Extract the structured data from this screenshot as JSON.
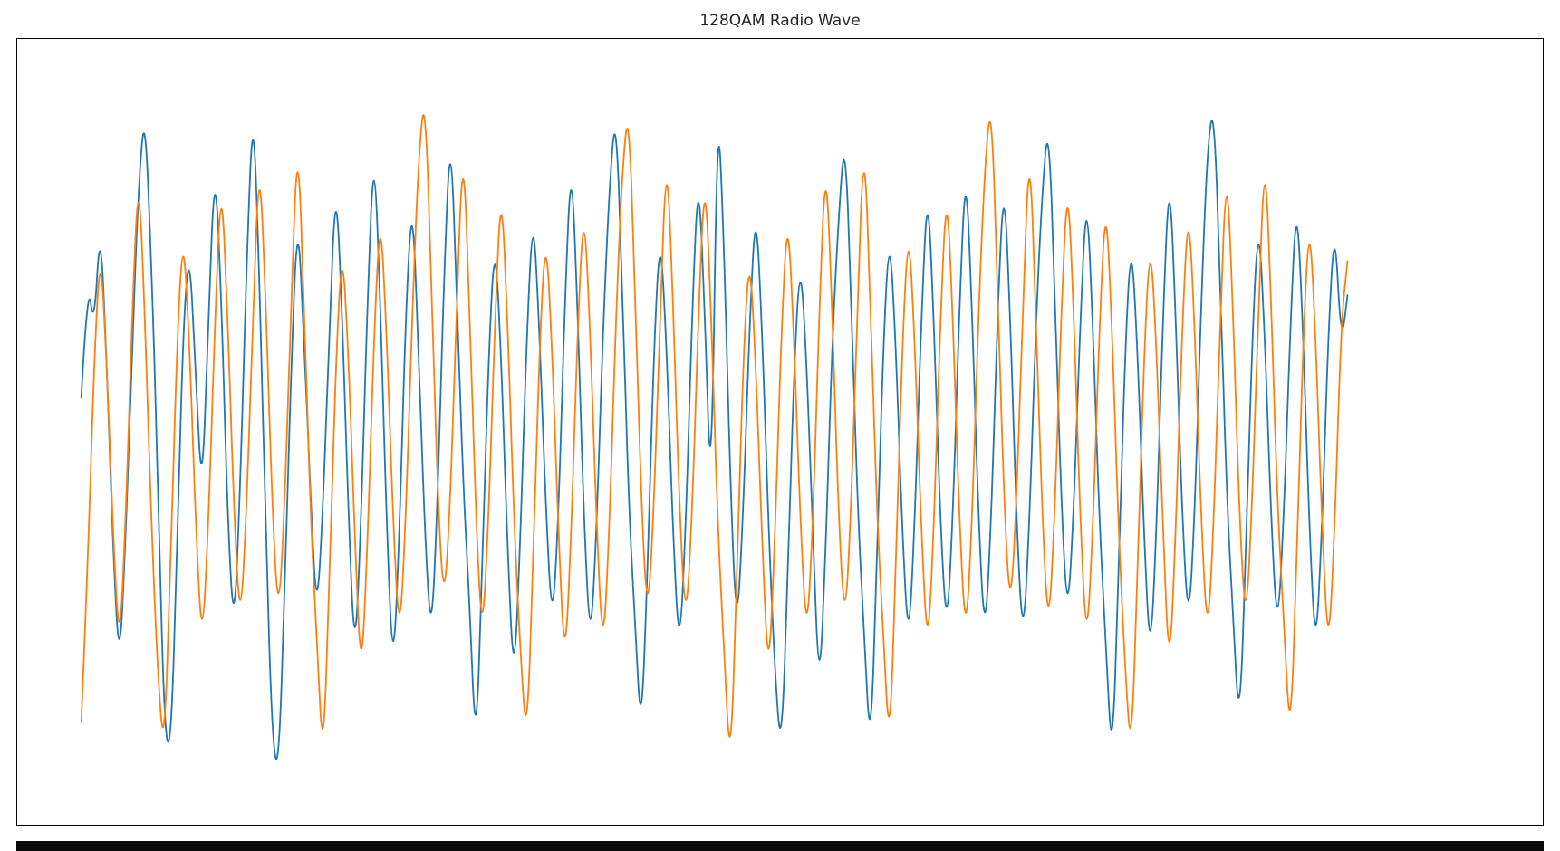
{
  "chart_data": {
    "type": "line",
    "title": "128QAM Radio Wave",
    "xlabel": "",
    "ylabel": "",
    "layout": {
      "legend": "none",
      "grid": false,
      "frame": true,
      "x_ticks_visible": false,
      "y_ticks_visible": false,
      "ylim": [
        -1.15,
        1.15
      ],
      "x_pad_left_frac": 0.042,
      "x_pad_right_frac": 0.128
    },
    "series": [
      {
        "name": "series-1",
        "color": "#1f77b4",
        "values": [
          0.1,
          0.45,
          0.3,
          0.62,
          0.2,
          -0.35,
          -0.7,
          -0.3,
          0.25,
          0.72,
          0.95,
          0.5,
          -0.1,
          -0.85,
          -0.95,
          -0.4,
          0.3,
          0.55,
          0.15,
          -0.2,
          0.35,
          0.8,
          0.4,
          -0.25,
          -0.6,
          -0.15,
          0.5,
          0.98,
          0.45,
          -0.3,
          -0.9,
          -1.0,
          -0.45,
          0.2,
          0.65,
          0.28,
          -0.18,
          -0.55,
          -0.22,
          0.3,
          0.75,
          0.35,
          -0.25,
          -0.68,
          -0.25,
          0.4,
          0.85,
          0.38,
          -0.28,
          -0.72,
          -0.3,
          0.35,
          0.7,
          0.25,
          -0.3,
          -0.62,
          -0.2,
          0.45,
          0.9,
          0.42,
          -0.15,
          -0.5,
          -0.95,
          -0.42,
          0.22,
          0.58,
          0.22,
          -0.35,
          -0.75,
          -0.32,
          0.28,
          0.66,
          0.3,
          -0.22,
          -0.58,
          -0.25,
          0.38,
          0.82,
          0.36,
          -0.26,
          -0.64,
          -0.28,
          0.3,
          0.72,
          0.95,
          0.45,
          -0.2,
          -0.55,
          -0.9,
          -0.4,
          0.25,
          0.6,
          0.24,
          -0.3,
          -0.66,
          -0.28,
          0.35,
          0.78,
          0.34,
          -0.24,
          1.0,
          0.55,
          -0.15,
          -0.6,
          -0.25,
          0.3,
          0.68,
          0.3,
          -0.28,
          -0.7,
          -0.95,
          -0.45,
          0.18,
          0.52,
          0.2,
          -0.32,
          -0.78,
          -0.34,
          0.26,
          0.62,
          0.88,
          0.4,
          -0.22,
          -0.58,
          -0.95,
          -0.42,
          0.24,
          0.6,
          0.26,
          -0.28,
          -0.64,
          -0.26,
          0.32,
          0.74,
          0.32,
          -0.26,
          -0.6,
          -0.24,
          0.36,
          0.8,
          0.35,
          -0.25,
          -0.62,
          -0.26,
          0.34,
          0.76,
          0.33,
          -0.27,
          -0.63,
          -0.27,
          0.3,
          0.7,
          0.92,
          0.42,
          -0.2,
          -0.56,
          -0.22,
          0.32,
          0.72,
          0.3,
          -0.26,
          -0.62,
          -0.98,
          -0.44,
          0.22,
          0.58,
          0.24,
          -0.3,
          -0.68,
          -0.28,
          0.34,
          0.78,
          0.34,
          -0.24,
          -0.58,
          -0.24,
          0.38,
          0.84,
          0.96,
          0.44,
          -0.18,
          -0.54,
          -0.88,
          -0.38,
          0.26,
          0.64,
          0.28,
          -0.26,
          -0.6,
          -0.24,
          0.3,
          0.7,
          0.3,
          -0.28,
          -0.66,
          -0.28,
          0.3,
          0.62,
          0.25,
          0.4
        ]
      },
      {
        "name": "series-2",
        "color": "#ff7f0e",
        "values": [
          -0.85,
          -0.4,
          0.2,
          0.55,
          0.2,
          -0.3,
          -0.65,
          -0.25,
          0.35,
          0.78,
          0.34,
          -0.26,
          -0.7,
          -0.95,
          -0.42,
          0.24,
          0.6,
          0.26,
          -0.28,
          -0.64,
          -0.26,
          0.32,
          0.76,
          0.34,
          -0.24,
          -0.58,
          -0.22,
          0.36,
          0.82,
          0.38,
          -0.22,
          -0.56,
          -0.2,
          0.4,
          0.88,
          0.4,
          -0.24,
          -0.6,
          -0.98,
          -0.44,
          0.2,
          0.56,
          0.22,
          -0.32,
          -0.74,
          -0.32,
          0.28,
          0.66,
          0.28,
          -0.26,
          -0.62,
          -0.26,
          0.34,
          0.8,
          1.0,
          0.46,
          -0.18,
          -0.52,
          -0.2,
          0.38,
          0.86,
          0.38,
          -0.24,
          -0.62,
          -0.26,
          0.32,
          0.74,
          0.32,
          -0.26,
          -0.64,
          -0.92,
          -0.4,
          0.24,
          0.6,
          0.24,
          -0.3,
          -0.7,
          -0.3,
          0.3,
          0.68,
          0.28,
          -0.28,
          -0.66,
          -0.28,
          0.32,
          0.76,
          0.96,
          0.44,
          -0.2,
          -0.56,
          -0.22,
          0.36,
          0.84,
          0.38,
          -0.22,
          -0.58,
          -0.24,
          0.34,
          0.78,
          0.34,
          -0.26,
          -0.64,
          -1.0,
          -0.46,
          0.2,
          0.54,
          0.2,
          -0.32,
          -0.74,
          -0.32,
          0.28,
          0.66,
          0.28,
          -0.26,
          -0.62,
          -0.26,
          0.36,
          0.82,
          0.36,
          -0.24,
          -0.58,
          -0.22,
          0.38,
          0.88,
          0.4,
          -0.22,
          -0.58,
          -0.94,
          -0.42,
          0.24,
          0.62,
          0.26,
          -0.28,
          -0.66,
          -0.28,
          0.32,
          0.74,
          0.32,
          -0.26,
          -0.62,
          -0.26,
          0.34,
          0.78,
          0.98,
          0.44,
          -0.2,
          -0.54,
          -0.2,
          0.38,
          0.86,
          0.38,
          -0.24,
          -0.6,
          -0.24,
          0.34,
          0.76,
          0.34,
          -0.26,
          -0.64,
          -0.28,
          0.3,
          0.7,
          0.3,
          -0.28,
          -0.68,
          -0.96,
          -0.42,
          0.22,
          0.58,
          0.24,
          -0.3,
          -0.72,
          -0.3,
          0.3,
          0.68,
          0.3,
          -0.26,
          -0.62,
          -0.26,
          0.34,
          0.8,
          0.36,
          -0.24,
          -0.58,
          -0.22,
          0.36,
          0.84,
          0.38,
          -0.22,
          -0.56,
          -0.92,
          -0.4,
          0.26,
          0.64,
          0.28,
          -0.28,
          -0.66,
          -0.28,
          0.32,
          0.5
        ]
      }
    ]
  }
}
